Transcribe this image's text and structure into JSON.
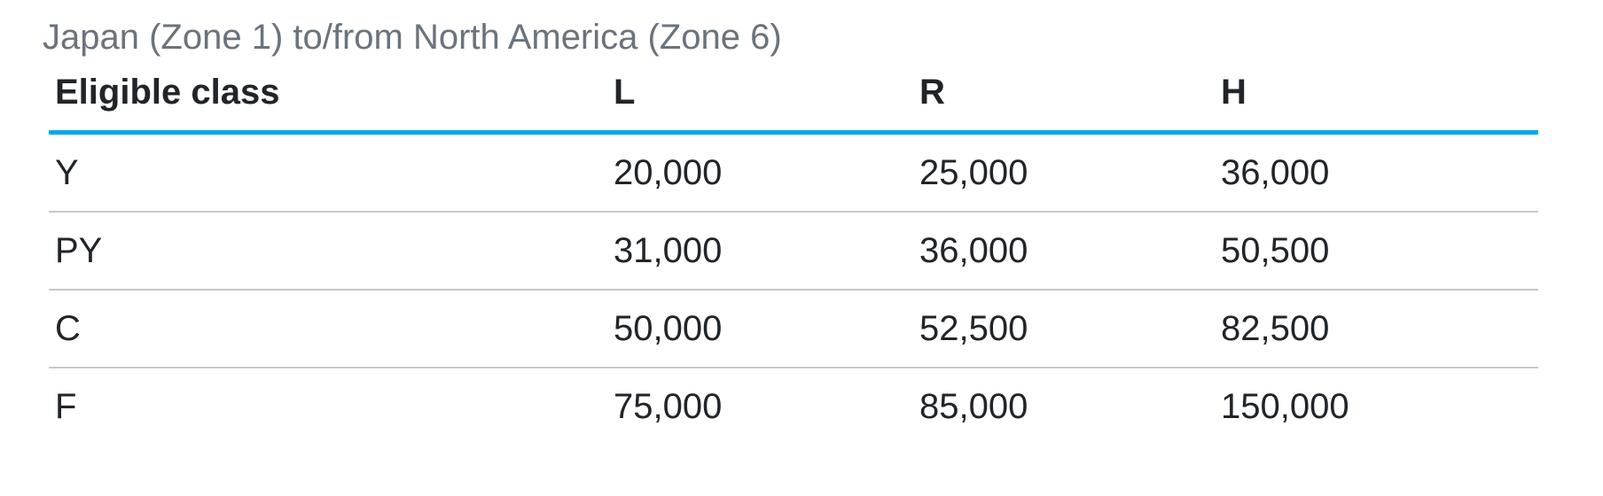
{
  "page": {
    "title": "Japan (Zone 1) to/from North America (Zone 6)"
  },
  "table": {
    "headers": {
      "eligible_class": "Eligible class",
      "l": "L",
      "r": "R",
      "h": "H"
    },
    "rows": [
      {
        "eligible_class": "Y",
        "l": "20,000",
        "r": "25,000",
        "h": "36,000"
      },
      {
        "eligible_class": "PY",
        "l": "31,000",
        "r": "36,000",
        "h": "50,500"
      },
      {
        "eligible_class": "C",
        "l": "50,000",
        "r": "52,500",
        "h": "82,500"
      },
      {
        "eligible_class": "F",
        "l": "75,000",
        "r": "85,000",
        "h": "150,000"
      }
    ]
  },
  "colors": {
    "accent_blue": "#00a8e8",
    "title_gray": "#6b737c",
    "text_dark": "#212529",
    "row_divider": "#c8c8c8",
    "background": "#ffffff"
  }
}
